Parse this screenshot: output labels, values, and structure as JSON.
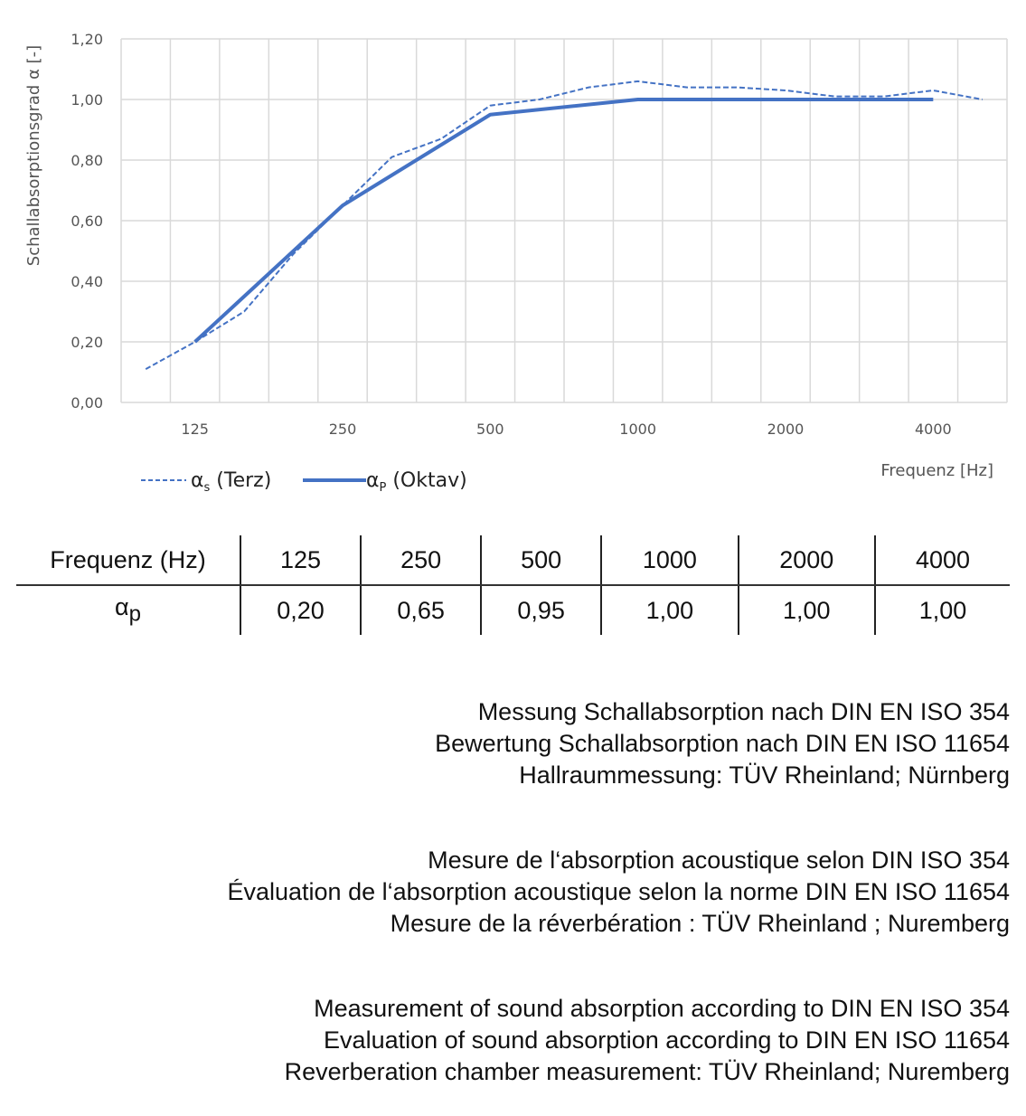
{
  "chart_data": {
    "type": "line",
    "ylabel": "Schallabsorptionsgrad α [-]",
    "xlabel": "Frequenz [Hz]",
    "ylim": [
      0,
      1.2
    ],
    "yticks": [
      "0,00",
      "0,20",
      "0,40",
      "0,60",
      "0,80",
      "1,00",
      "1,20"
    ],
    "x_bands": [
      100,
      125,
      160,
      200,
      250,
      315,
      400,
      500,
      630,
      800,
      1000,
      1250,
      1600,
      2000,
      2500,
      3150,
      4000,
      5000
    ],
    "xtick_labels": [
      "125",
      "250",
      "500",
      "1000",
      "2000",
      "4000"
    ],
    "grid": true,
    "legend_position": "bottom-left",
    "series": [
      {
        "name": "αs (Terz)",
        "name_main": "α",
        "name_sub": "s",
        "name_rest": " (Terz)",
        "style": "dashed",
        "color": "#4472C4",
        "x": [
          100,
          125,
          160,
          200,
          250,
          315,
          400,
          500,
          630,
          800,
          1000,
          1250,
          1600,
          2000,
          2500,
          3150,
          4000,
          5000
        ],
        "values": [
          0.11,
          0.2,
          0.3,
          0.49,
          0.65,
          0.81,
          0.87,
          0.98,
          1.0,
          1.04,
          1.06,
          1.04,
          1.04,
          1.03,
          1.01,
          1.01,
          1.03,
          1.0
        ]
      },
      {
        "name": "αP (Oktav)",
        "name_main": "α",
        "name_sub": "P",
        "name_rest": " (Oktav)",
        "style": "solid",
        "color": "#4472C4",
        "x": [
          125,
          250,
          500,
          1000,
          2000,
          4000
        ],
        "values": [
          0.2,
          0.65,
          0.95,
          1.0,
          1.0,
          1.0
        ]
      }
    ]
  },
  "table": {
    "header_label": "Frequenz (Hz)",
    "frequencies": [
      "125",
      "250",
      "500",
      "1000",
      "2000",
      "4000"
    ],
    "row_label_main": "α",
    "row_label_sub": "p",
    "values": [
      "0,20",
      "0,65",
      "0,95",
      "1,00",
      "1,00",
      "1,00"
    ]
  },
  "notes": {
    "de": [
      "Messung Schallabsorption nach DIN EN ISO 354",
      "Bewertung Schallabsorption nach DIN EN ISO 11654",
      "Hallraummessung: TÜV Rheinland; Nürnberg"
    ],
    "fr": [
      "Mesure de l‘absorption acoustique selon DIN ISO 354",
      "Évaluation de l‘absorption acoustique selon la norme DIN EN ISO 11654",
      "Mesure de la réverbération : TÜV Rheinland ; Nuremberg"
    ],
    "en": [
      "Measurement of sound absorption according to DIN EN ISO 354",
      "Evaluation of sound absorption according to DIN EN ISO 11654",
      "Reverberation chamber measurement: TÜV Rheinland; Nuremberg"
    ]
  }
}
